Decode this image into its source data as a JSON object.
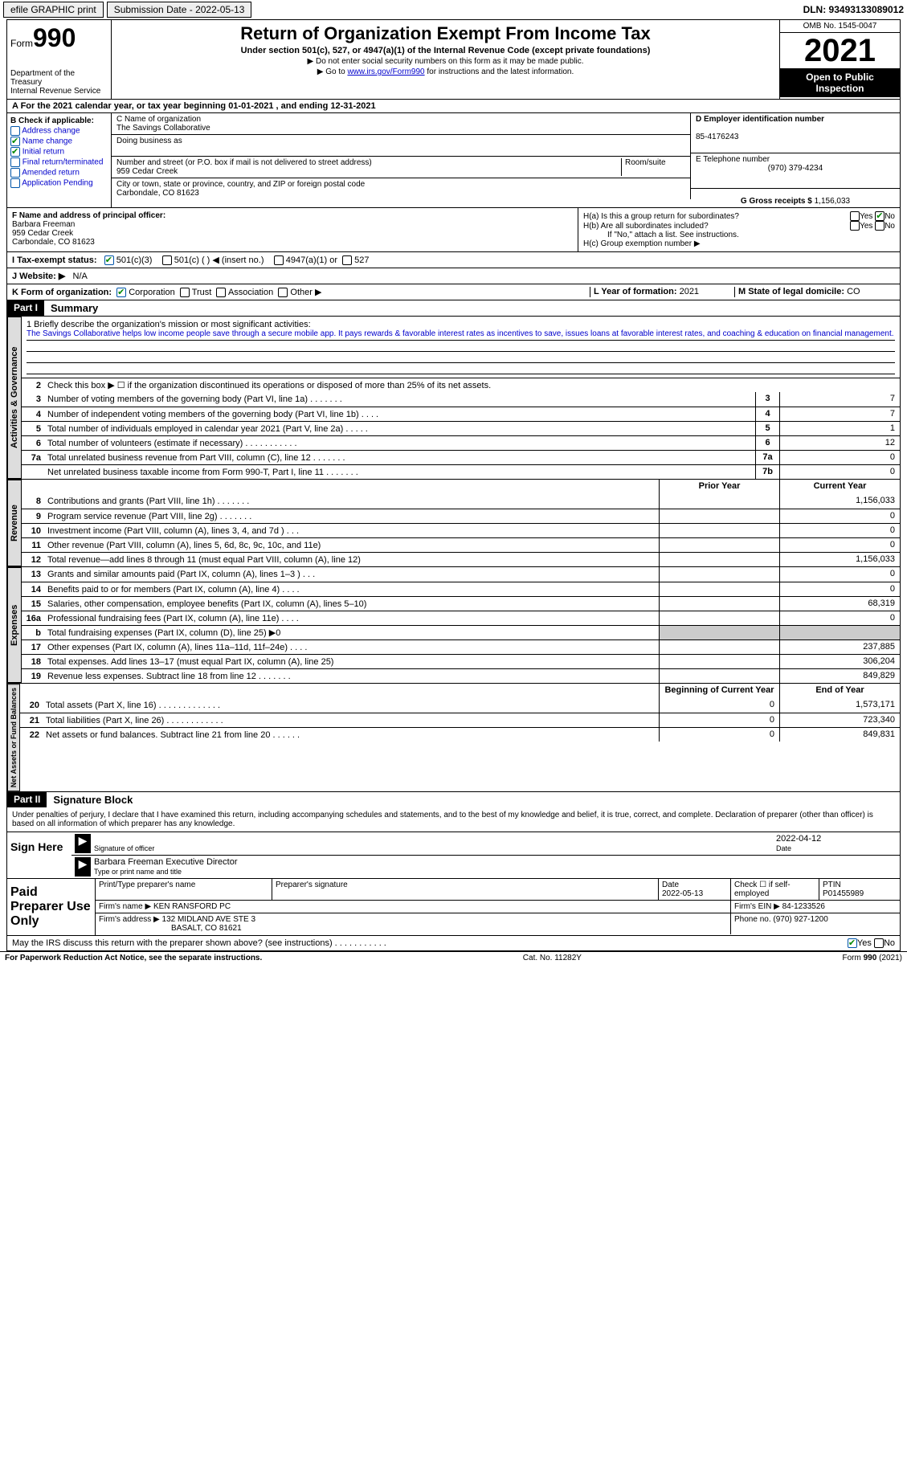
{
  "topbar": {
    "efile": "efile GRAPHIC print",
    "submission": "Submission Date - 2022-05-13",
    "dln": "DLN: 93493133089012"
  },
  "header": {
    "form_word": "Form",
    "form_num": "990",
    "dept": "Department of the Treasury",
    "irs": "Internal Revenue Service",
    "title": "Return of Organization Exempt From Income Tax",
    "sub": "Under section 501(c), 527, or 4947(a)(1) of the Internal Revenue Code (except private foundations)",
    "note1": "▶ Do not enter social security numbers on this form as it may be made public.",
    "note2_pre": "▶ Go to ",
    "note2_link": "www.irs.gov/Form990",
    "note2_post": " for instructions and the latest information.",
    "omb": "OMB No. 1545-0047",
    "year": "2021",
    "inspect": "Open to Public Inspection"
  },
  "row_a": "A For the 2021 calendar year, or tax year beginning 01-01-2021   , and ending 12-31-2021",
  "b": {
    "label": "B Check if applicable:",
    "opts": [
      "Address change",
      "Name change",
      "Initial return",
      "Final return/terminated",
      "Amended return",
      "Application Pending"
    ],
    "checked": [
      false,
      true,
      true,
      false,
      false,
      false
    ]
  },
  "c": {
    "name_label": "C Name of organization",
    "name": "The Savings Collaborative",
    "dba_label": "Doing business as",
    "addr_label": "Number and street (or P.O. box if mail is not delivered to street address)",
    "room_label": "Room/suite",
    "addr": "959 Cedar Creek",
    "city_label": "City or town, state or province, country, and ZIP or foreign postal code",
    "city": "Carbondale, CO  81623"
  },
  "d": {
    "ein_label": "D Employer identification number",
    "ein": "85-4176243",
    "tel_label": "E Telephone number",
    "tel": "(970) 379-4234",
    "gross_label": "G Gross receipts $",
    "gross": "1,156,033"
  },
  "f": {
    "label": "F  Name and address of principal officer:",
    "name": "Barbara Freeman",
    "addr1": "959 Cedar Creek",
    "addr2": "Carbondale, CO  81623"
  },
  "h": {
    "a": "H(a)  Is this a group return for subordinates?",
    "b": "H(b)  Are all subordinates included?",
    "b_note": "If \"No,\" attach a list. See instructions.",
    "c": "H(c)  Group exemption number ▶",
    "yes": "Yes",
    "no": "No"
  },
  "i": {
    "label": "I   Tax-exempt status:",
    "opts": [
      "501(c)(3)",
      "501(c) (  ) ◀ (insert no.)",
      "4947(a)(1) or",
      "527"
    ]
  },
  "j": {
    "label": "J   Website: ▶",
    "val": "N/A"
  },
  "k": {
    "label": "K Form of organization:",
    "opts": [
      "Corporation",
      "Trust",
      "Association",
      "Other ▶"
    ]
  },
  "l": {
    "label": "L Year of formation:",
    "val": "2021"
  },
  "m": {
    "label": "M State of legal domicile:",
    "val": "CO"
  },
  "part1": {
    "num": "Part I",
    "title": "Summary"
  },
  "mission": {
    "label": "1   Briefly describe the organization's mission or most significant activities:",
    "text": "The Savings Collaborative helps low income people save through a secure mobile app. It pays rewards & favorable interest rates as incentives to save, issues loans at favorable interest rates, and coaching & education on financial management."
  },
  "line2": "Check this box ▶ ☐  if the organization discontinued its operations or disposed of more than 25% of its net assets.",
  "lines_gov": [
    {
      "n": "3",
      "t": "Number of voting members of the governing body (Part VI, line 1a)   .    .    .    .    .    .    .",
      "b": "3",
      "v": "7"
    },
    {
      "n": "4",
      "t": "Number of independent voting members of the governing body (Part VI, line 1b)   .    .    .    .",
      "b": "4",
      "v": "7"
    },
    {
      "n": "5",
      "t": "Total number of individuals employed in calendar year 2021 (Part V, line 2a)   .    .    .    .    .",
      "b": "5",
      "v": "1"
    },
    {
      "n": "6",
      "t": "Total number of volunteers (estimate if necessary)    .    .    .    .    .    .    .    .    .    .    .",
      "b": "6",
      "v": "12"
    },
    {
      "n": "7a",
      "t": "Total unrelated business revenue from Part VIII, column (C), line 12    .    .    .    .    .    .    .",
      "b": "7a",
      "v": "0"
    },
    {
      "n": "",
      "t": "Net unrelated business taxable income from Form 990-T, Part I, line 11   .    .    .    .    .    .    .",
      "b": "7b",
      "v": "0"
    }
  ],
  "col_headers": {
    "prior": "Prior Year",
    "current": "Current Year",
    "boy": "Beginning of Current Year",
    "eoy": "End of Year"
  },
  "lines_rev": [
    {
      "n": "8",
      "t": "Contributions and grants (Part VIII, line 1h)    .    .    .    .    .    .    .",
      "p": "",
      "c": "1,156,033"
    },
    {
      "n": "9",
      "t": "Program service revenue (Part VIII, line 2g)    .    .    .    .    .    .    .",
      "p": "",
      "c": "0"
    },
    {
      "n": "10",
      "t": "Investment income (Part VIII, column (A), lines 3, 4, and 7d )    .    .    .",
      "p": "",
      "c": "0"
    },
    {
      "n": "11",
      "t": "Other revenue (Part VIII, column (A), lines 5, 6d, 8c, 9c, 10c, and 11e)",
      "p": "",
      "c": "0"
    },
    {
      "n": "12",
      "t": "Total revenue—add lines 8 through 11 (must equal Part VIII, column (A), line 12)",
      "p": "",
      "c": "1,156,033"
    }
  ],
  "lines_exp": [
    {
      "n": "13",
      "t": "Grants and similar amounts paid (Part IX, column (A), lines 1–3 )   .    .    .",
      "p": "",
      "c": "0"
    },
    {
      "n": "14",
      "t": "Benefits paid to or for members (Part IX, column (A), line 4)    .    .    .    .",
      "p": "",
      "c": "0"
    },
    {
      "n": "15",
      "t": "Salaries, other compensation, employee benefits (Part IX, column (A), lines 5–10)",
      "p": "",
      "c": "68,319"
    },
    {
      "n": "16a",
      "t": "Professional fundraising fees (Part IX, column (A), line 11e)    .    .    .    .",
      "p": "",
      "c": "0"
    },
    {
      "n": "b",
      "t": "Total fundraising expenses (Part IX, column (D), line 25) ▶0",
      "p": "grey",
      "c": "grey"
    },
    {
      "n": "17",
      "t": "Other expenses (Part IX, column (A), lines 11a–11d, 11f–24e)    .    .    .    .",
      "p": "",
      "c": "237,885"
    },
    {
      "n": "18",
      "t": "Total expenses. Add lines 13–17 (must equal Part IX, column (A), line 25)",
      "p": "",
      "c": "306,204"
    },
    {
      "n": "19",
      "t": "Revenue less expenses. Subtract line 18 from line 12   .    .    .    .    .    .    .",
      "p": "",
      "c": "849,829"
    }
  ],
  "lines_net": [
    {
      "n": "20",
      "t": "Total assets (Part X, line 16)   .    .    .    .    .    .    .    .    .    .    .    .    .",
      "p": "0",
      "c": "1,573,171"
    },
    {
      "n": "21",
      "t": "Total liabilities (Part X, line 26)   .    .    .    .    .    .    .    .    .    .    .    .",
      "p": "0",
      "c": "723,340"
    },
    {
      "n": "22",
      "t": "Net assets or fund balances. Subtract line 21 from line 20   .    .    .    .    .    .",
      "p": "0",
      "c": "849,831"
    }
  ],
  "part2": {
    "num": "Part II",
    "title": "Signature Block"
  },
  "penalties": "Under penalties of perjury, I declare that I have examined this return, including accompanying schedules and statements, and to the best of my knowledge and belief, it is true, correct, and complete. Declaration of preparer (other than officer) is based on all information of which preparer has any knowledge.",
  "sign": {
    "here": "Sign Here",
    "sig_label": "Signature of officer",
    "date": "2022-04-12",
    "date_label": "Date",
    "name": "Barbara Freeman  Executive Director",
    "name_label": "Type or print name and title"
  },
  "paid": {
    "title": "Paid Preparer Use Only",
    "h1": "Print/Type preparer's name",
    "h2": "Preparer's signature",
    "h3": "Date",
    "h3v": "2022-05-13",
    "h4": "Check ☐ if self-employed",
    "h5": "PTIN",
    "h5v": "P01455989",
    "firm_label": "Firm's name    ▶",
    "firm": "KEN RANSFORD PC",
    "ein_label": "Firm's EIN ▶",
    "ein": "84-1233526",
    "addr_label": "Firm's address ▶",
    "addr1": "132 MIDLAND AVE STE 3",
    "addr2": "BASALT, CO  81621",
    "phone_label": "Phone no.",
    "phone": "(970) 927-1200"
  },
  "discuss": "May the IRS discuss this return with the preparer shown above? (see instructions)   .    .    .    .    .    .    .    .    .    .    .",
  "footer": {
    "pra": "For Paperwork Reduction Act Notice, see the separate instructions.",
    "cat": "Cat. No. 11282Y",
    "form": "Form 990 (2021)"
  },
  "vtabs": {
    "gov": "Activities & Governance",
    "rev": "Revenue",
    "exp": "Expenses",
    "net": "Net Assets or Fund Balances"
  }
}
